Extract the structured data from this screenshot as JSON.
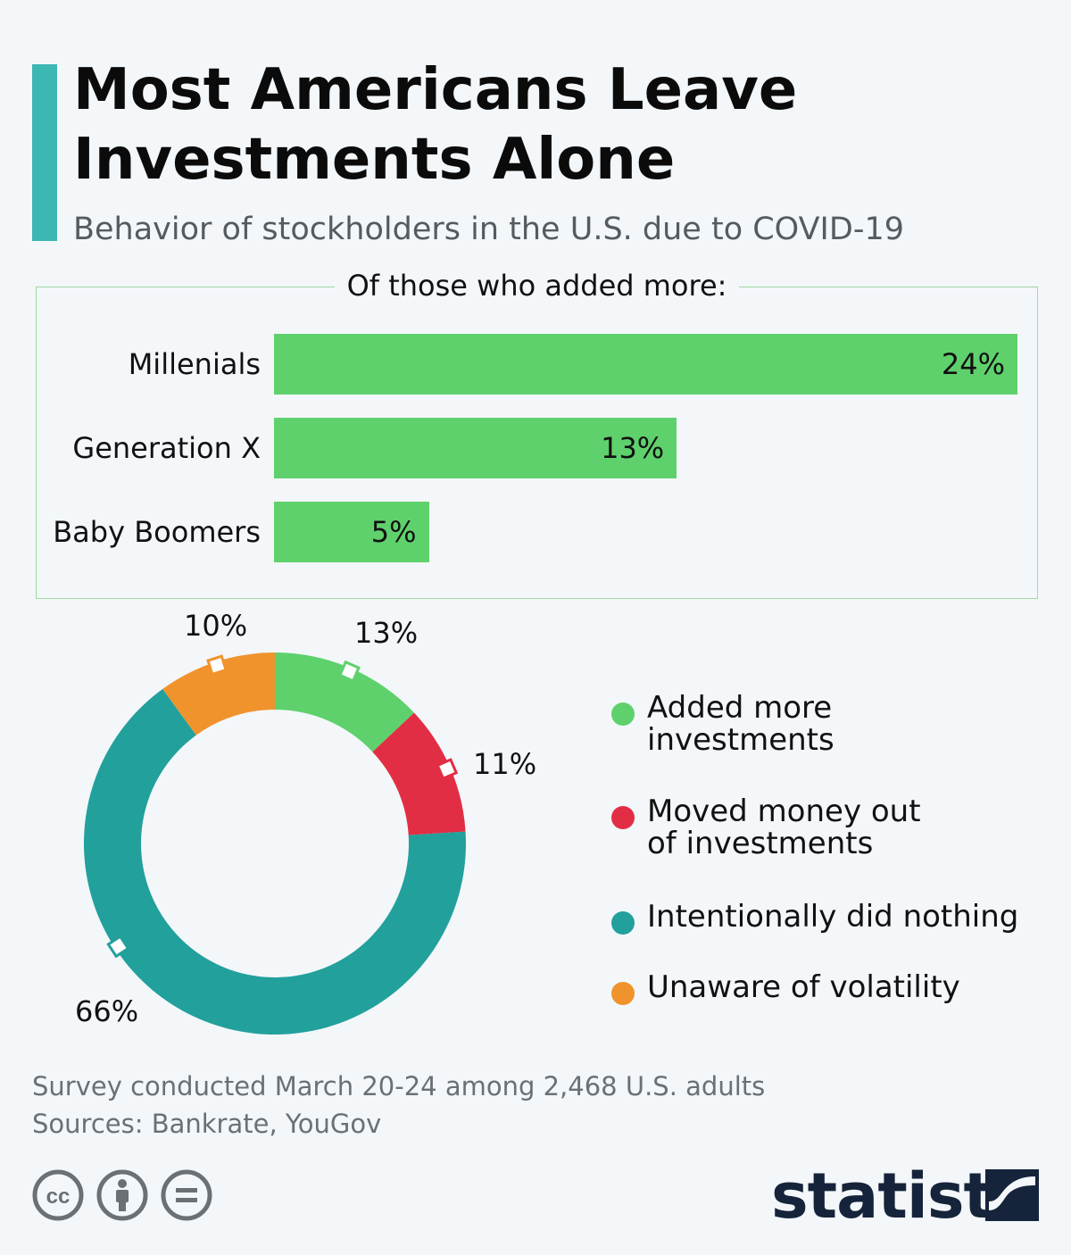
{
  "header": {
    "title": "Most Americans Leave Investments Alone",
    "subtitle": "Behavior of stockholders in the U.S. due to COVID-19"
  },
  "colors": {
    "accent": "#3db7b4",
    "bar": "#5fd16c",
    "added": "#5fd16c",
    "moved": "#e22e45",
    "nothing": "#22a09c",
    "unaware": "#f0932d",
    "brand": "#15243a"
  },
  "chart_data": [
    {
      "type": "bar",
      "orientation": "horizontal",
      "title": "Of those who added more:",
      "categories": [
        "Millenials",
        "Generation X",
        "Baby Boomers"
      ],
      "values": [
        24,
        13,
        5
      ],
      "value_labels": [
        "24%",
        "13%",
        "5%"
      ],
      "xlim": [
        0,
        24
      ],
      "grid": false
    },
    {
      "type": "pie",
      "style": "donut",
      "slices": [
        {
          "name": "Added more investments",
          "value": 13,
          "label": "13%",
          "color": "#5fd16c"
        },
        {
          "name": "Moved money out of investments",
          "value": 11,
          "label": "11%",
          "color": "#e22e45"
        },
        {
          "name": "Intentionally did nothing",
          "value": 66,
          "label": "66%",
          "color": "#22a09c"
        },
        {
          "name": "Unaware of volatility",
          "value": 10,
          "label": "10%",
          "color": "#f0932d"
        }
      ],
      "legend_placement": "right"
    }
  ],
  "legend": [
    {
      "text": "Added more\ninvestments",
      "color": "#5fd16c"
    },
    {
      "text": "Moved money out\nof investments",
      "color": "#e22e45"
    },
    {
      "text": "Intentionally did nothing",
      "color": "#22a09c"
    },
    {
      "text": "Unaware of volatility",
      "color": "#f0932d"
    }
  ],
  "footer": {
    "note": "Survey conducted March 20-24 among 2,468 U.S. adults",
    "sources": "Sources: Bankrate, YouGov"
  },
  "icons": [
    "creative-commons-icon",
    "attribution-icon",
    "no-derivatives-icon",
    "statista-logo-icon"
  ],
  "brand": {
    "name": "statista"
  }
}
